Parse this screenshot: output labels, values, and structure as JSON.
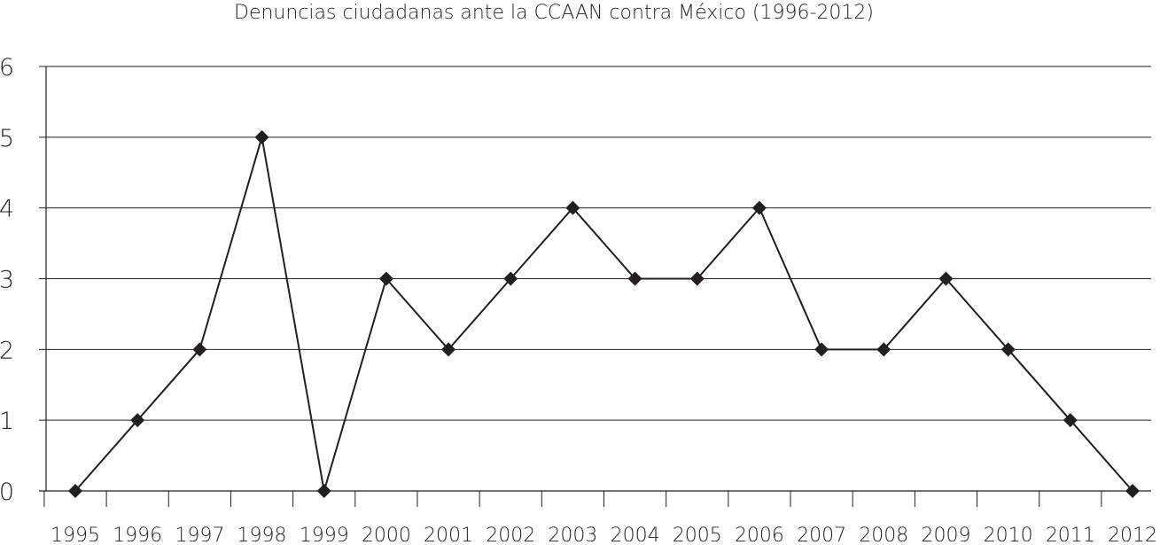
{
  "chart_data": {
    "type": "line",
    "title": "Denuncias ciudadanas ante la CCAAN contra México (1996-2012)",
    "xlabel": "",
    "ylabel": "",
    "categories": [
      "1995",
      "1996",
      "1997",
      "1998",
      "1999",
      "2000",
      "2001",
      "2002",
      "2003",
      "2004",
      "2005",
      "2006",
      "2007",
      "2008",
      "2009",
      "2010",
      "2011",
      "2012"
    ],
    "y_ticks": [
      "0",
      "1",
      "2",
      "3",
      "4",
      "5",
      "6"
    ],
    "ylim": [
      0,
      6
    ],
    "grid": "horizontal",
    "marker": "diamond",
    "series": [
      {
        "values": [
          0,
          1,
          2,
          5,
          0,
          3,
          2,
          3,
          4,
          3,
          3,
          4,
          2,
          2,
          3,
          2,
          1,
          0
        ]
      }
    ],
    "line_color": "#231f20",
    "grid_color": "#231f20"
  }
}
